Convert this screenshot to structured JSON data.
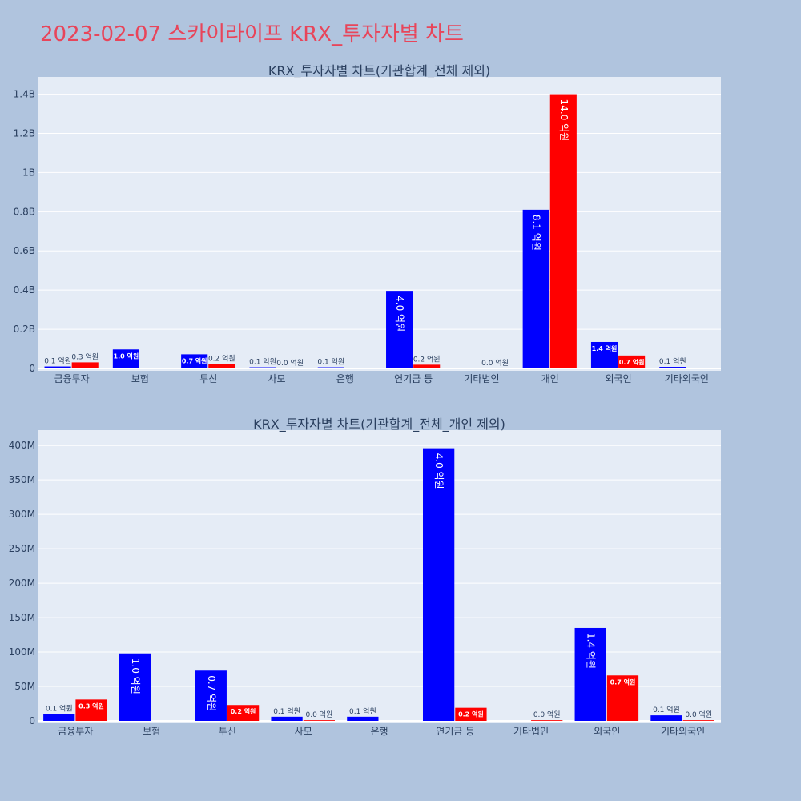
{
  "page_title": "2023-02-07 스카이라이프 KRX_투자자별 차트",
  "colors": {
    "background": "#b0c4de",
    "plot_bg": "#e5ecf6",
    "buy": "#0000ff",
    "sell": "#ff0000",
    "title": "#e8455a",
    "text": "#2a3f5f"
  },
  "chart_data": [
    {
      "type": "bar",
      "title": "KRX_투자자별 차트(기관합계_전체 제외)",
      "categories": [
        "금융투자",
        "보험",
        "투신",
        "사모",
        "은행",
        "연기금 등",
        "기타법인",
        "개인",
        "외국인",
        "기타외국인"
      ],
      "ylim": [
        0,
        1480000000
      ],
      "yticks": [
        0,
        200000000,
        400000000,
        600000000,
        800000000,
        1000000000,
        1200000000,
        1400000000
      ],
      "ytick_labels": [
        "0",
        "0.2B",
        "0.4B",
        "0.6B",
        "0.8B",
        "1B",
        "1.2B",
        "1.4B"
      ],
      "grid": true,
      "series": [
        {
          "color": "#0000ff",
          "values": [
            10000000,
            97000000,
            72000000,
            6000000,
            6000000,
            396000000,
            0,
            810000000,
            135000000,
            8000000
          ],
          "labels": [
            "0.1 억원",
            "1.0 억원",
            "0.7 억원",
            "0.1 억원",
            "0.1 억원",
            "4.0 억원",
            "",
            "8.1 억원",
            "1.4 억원",
            "0.1 억원"
          ]
        },
        {
          "color": "#ff0000",
          "values": [
            31000000,
            0,
            23000000,
            1000000,
            0,
            19000000,
            1000000,
            1400000000,
            66000000,
            0
          ],
          "labels": [
            "0.3 억원",
            "",
            "0.2 억원",
            "0.0 억원",
            "",
            "0.2 억원",
            "0.0 억원",
            "14.0 억원",
            "0.7 억원",
            ""
          ]
        }
      ]
    },
    {
      "type": "bar",
      "title": "KRX_투자자별 차트(기관합계_전체_개인 제외)",
      "categories": [
        "금융투자",
        "보험",
        "투신",
        "사모",
        "은행",
        "연기금 등",
        "기타법인",
        "외국인",
        "기타외국인"
      ],
      "ylim": [
        0,
        420000000
      ],
      "yticks": [
        0,
        50000000,
        100000000,
        150000000,
        200000000,
        250000000,
        300000000,
        350000000,
        400000000
      ],
      "ytick_labels": [
        "0",
        "50M",
        "100M",
        "150M",
        "200M",
        "250M",
        "300M",
        "350M",
        "400M"
      ],
      "grid": true,
      "series": [
        {
          "color": "#0000ff",
          "values": [
            10000000,
            98000000,
            73000000,
            6000000,
            6000000,
            396000000,
            0,
            135000000,
            8000000
          ],
          "labels": [
            "0.1 억원",
            "1.0 억원",
            "0.7 억원",
            "0.1 억원",
            "0.1 억원",
            "4.0 억원",
            "",
            "1.4 억원",
            "0.1 억원"
          ]
        },
        {
          "color": "#ff0000",
          "values": [
            31000000,
            0,
            23000000,
            1000000,
            0,
            19000000,
            1000000,
            66000000,
            1000000
          ],
          "labels": [
            "0.3 억원",
            "",
            "0.2 억원",
            "0.0 억원",
            "",
            "0.2 억원",
            "0.0 억원",
            "0.7 억원",
            "0.0 억원"
          ]
        }
      ]
    }
  ]
}
